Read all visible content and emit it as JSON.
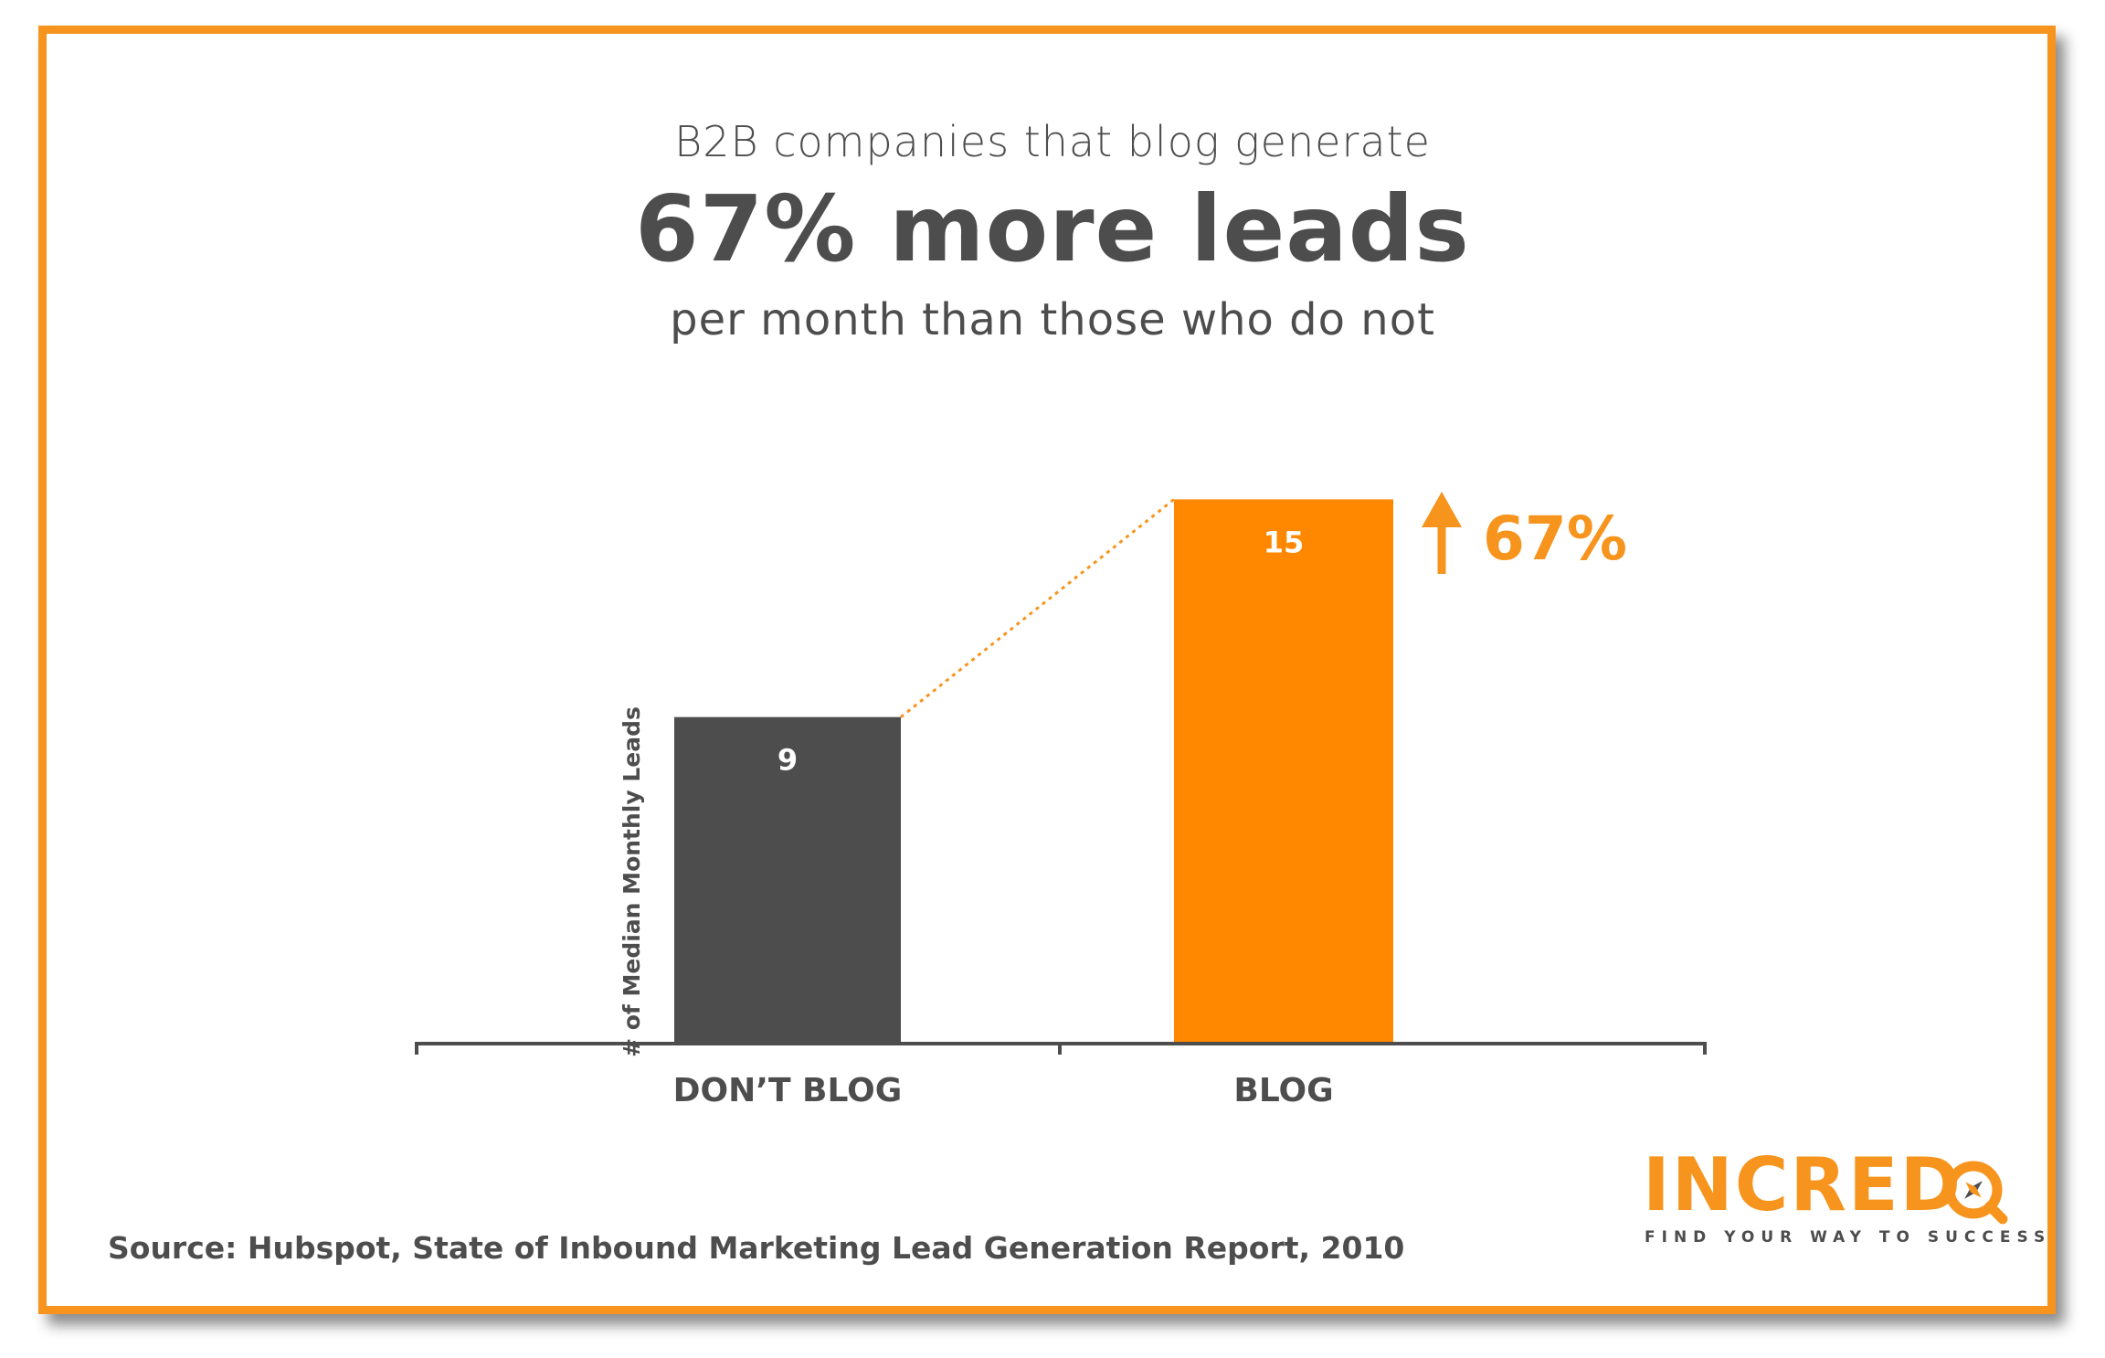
{
  "header": {
    "line1": "B2B companies that blog generate",
    "line2": "67% more leads",
    "line3": "per month than those who do not"
  },
  "chart_data": {
    "type": "bar",
    "categories": [
      "DON’T BLOG",
      "BLOG"
    ],
    "values": [
      9,
      15
    ],
    "value_labels": [
      "9",
      "15"
    ],
    "ylabel": "# of Median Monthly Leads",
    "xlabel": "",
    "ylim": [
      0,
      17
    ],
    "grid": false,
    "bar_colors": [
      "#4d4d4d",
      "#ff8800"
    ],
    "annotation": {
      "text": "67%",
      "icon": "arrow-up-icon",
      "color": "#f7941d"
    }
  },
  "footer": {
    "source": "Source: Hubspot, State of Inbound Marketing Lead Generation Report, 2010"
  },
  "logo": {
    "name": "INCREDO",
    "tagline": "FIND YOUR WAY TO SUCCESS"
  },
  "colors": {
    "accent": "#f7941d",
    "text": "#4d4d4d"
  }
}
